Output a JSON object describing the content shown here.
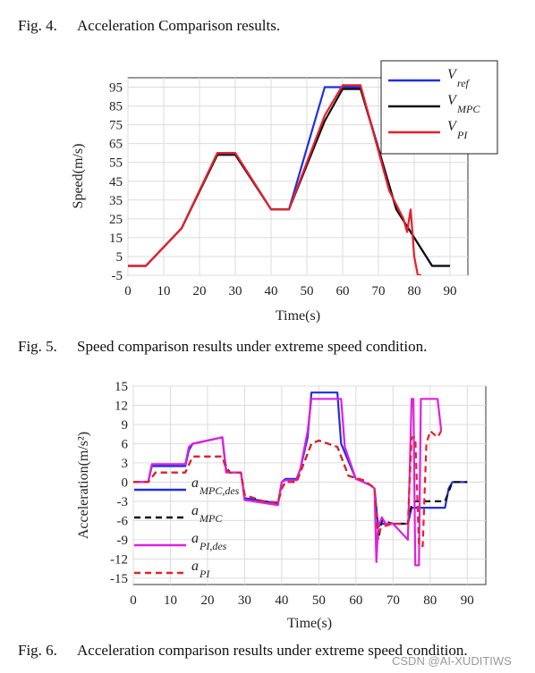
{
  "captions": {
    "fig4": {
      "num": "Fig. 4.",
      "text": "Acceleration Comparison results."
    },
    "fig5": {
      "num": "Fig. 5.",
      "text": "Speed comparison results under extreme speed condition."
    },
    "fig6": {
      "num": "Fig. 6.",
      "text": "Acceleration comparison results under extreme speed condition."
    }
  },
  "watermark": "CSDN @AI-XUDITIWS",
  "chart_data": [
    {
      "type": "line",
      "xlabel": "Time(s)",
      "ylabel": "Speed(m/s)",
      "xlim": [
        0,
        95
      ],
      "ylim": [
        -5,
        100
      ],
      "xticks": [
        0,
        10,
        20,
        30,
        40,
        50,
        60,
        70,
        80,
        90
      ],
      "yticks": [
        -5,
        5,
        15,
        25,
        35,
        45,
        55,
        65,
        75,
        85,
        95
      ],
      "grid": true,
      "legend_position": "top-right",
      "series": [
        {
          "name": "V",
          "sub": "ref",
          "color": "#1f2fe0",
          "dash": "",
          "x": [
            0,
            5,
            15,
            25,
            30,
            40,
            45,
            55,
            65,
            75,
            85,
            90
          ],
          "y": [
            0,
            0,
            20,
            60,
            60,
            30,
            30,
            95,
            95,
            30,
            0,
            0
          ]
        },
        {
          "name": "V",
          "sub": "MPC",
          "color": "#111111",
          "dash": "",
          "x": [
            0,
            5,
            15,
            25,
            30,
            40,
            45,
            55,
            60,
            65,
            75,
            85,
            90
          ],
          "y": [
            0,
            0,
            20,
            59,
            59,
            30,
            30,
            77,
            94,
            94,
            30,
            0,
            0
          ]
        },
        {
          "name": "V",
          "sub": "PI",
          "color": "#e8202a",
          "dash": "",
          "x": [
            0,
            5,
            15,
            25,
            30,
            40,
            45,
            55,
            60,
            65,
            73,
            77,
            78,
            79,
            80,
            81,
            82
          ],
          "y": [
            0,
            0,
            20,
            60,
            60,
            30,
            30,
            80,
            96,
            96,
            40,
            25,
            18,
            30,
            5,
            -5,
            -5
          ]
        }
      ]
    },
    {
      "type": "line",
      "xlabel": "Time(s)",
      "ylabel": "Acceleration(m/s²)",
      "xlim": [
        0,
        95
      ],
      "ylim": [
        -16,
        15
      ],
      "xticks": [
        0,
        10,
        20,
        30,
        40,
        50,
        60,
        70,
        80,
        90
      ],
      "yticks": [
        -15,
        -12,
        -9,
        -6,
        -3,
        0,
        3,
        6,
        9,
        12,
        15
      ],
      "grid": true,
      "legend_position": "left",
      "series": [
        {
          "name": "a",
          "sub": "MPC,des",
          "color": "#1f2fe0",
          "dash": "",
          "x": [
            0,
            4,
            5,
            14,
            15,
            16,
            24,
            25,
            26,
            29,
            30,
            39,
            40,
            41,
            44,
            45,
            47,
            48,
            55,
            56,
            60,
            64,
            65,
            66,
            67,
            70,
            74,
            75,
            76,
            84,
            85,
            86,
            90
          ],
          "y": [
            0,
            0,
            2.5,
            2.5,
            5,
            6,
            7,
            2,
            1.5,
            1.5,
            -2.5,
            -3.3,
            0,
            0.5,
            0.5,
            2,
            7,
            14,
            14,
            6,
            0.5,
            -0.5,
            -1,
            -7,
            -6.5,
            -6.5,
            -6.5,
            -4,
            -4,
            -4,
            -1,
            0,
            0
          ]
        },
        {
          "name": "a",
          "sub": "MPC",
          "color": "#111111",
          "dash": "7,5",
          "x": [
            0,
            4,
            6,
            14,
            16,
            24,
            25,
            26,
            29,
            30,
            35,
            39,
            40,
            41,
            44,
            45,
            48,
            50,
            55,
            58,
            62,
            64,
            65,
            66,
            67,
            70,
            74,
            75,
            76,
            84,
            86,
            90
          ],
          "y": [
            0,
            0,
            1.5,
            1.5,
            4,
            4,
            2.5,
            1.5,
            1.5,
            -2,
            -3,
            -3.2,
            -1,
            0,
            0,
            1.5,
            6,
            6.5,
            5.5,
            1,
            0.3,
            -0.5,
            -1,
            -9,
            -6,
            -6.5,
            -6.5,
            -3.5,
            -3,
            -3,
            0,
            0
          ]
        },
        {
          "name": "a",
          "sub": "PI,des",
          "color": "#e020e0",
          "dash": "",
          "x": [
            0,
            4,
            5,
            14,
            15,
            16,
            24,
            25,
            26,
            29,
            30,
            39,
            40,
            41,
            44,
            45,
            47,
            48,
            56,
            57,
            60,
            64,
            65,
            65.5,
            66,
            67,
            68,
            70,
            74,
            75,
            75.5,
            76,
            76.5,
            77,
            77.5,
            78,
            79,
            80,
            82,
            83
          ],
          "y": [
            0,
            0,
            2.8,
            2.8,
            5.5,
            6,
            7,
            1.5,
            1.5,
            1.5,
            -2.8,
            -3.6,
            0,
            0.3,
            0.3,
            2,
            8,
            13,
            13,
            5.5,
            0.5,
            -0.5,
            -1,
            -12.5,
            -7,
            -5.5,
            -6.5,
            -6.5,
            -9,
            13,
            13,
            -13,
            -13,
            -13,
            13,
            13,
            13,
            13,
            13,
            8
          ]
        },
        {
          "name": "a",
          "sub": "PI",
          "color": "#e8202a",
          "dash": "7,5",
          "x": [
            0,
            4,
            6,
            14,
            16,
            24,
            25,
            26,
            29,
            30,
            35,
            39,
            40,
            41,
            44,
            45,
            48,
            50,
            55,
            58,
            62,
            64,
            65,
            66,
            67,
            70,
            74,
            75,
            76,
            77,
            78,
            79,
            80,
            81,
            82,
            83
          ],
          "y": [
            0,
            0,
            1.5,
            1.5,
            4,
            4,
            2,
            1.5,
            1.5,
            -2,
            -3,
            -3.2,
            -1,
            0,
            0,
            1.5,
            6,
            6.5,
            5.5,
            1,
            0.3,
            -0.5,
            -1,
            -8,
            -7,
            -6.5,
            -6.5,
            7,
            7,
            -10,
            -10,
            6,
            8,
            7.5,
            7,
            8
          ]
        }
      ]
    }
  ]
}
